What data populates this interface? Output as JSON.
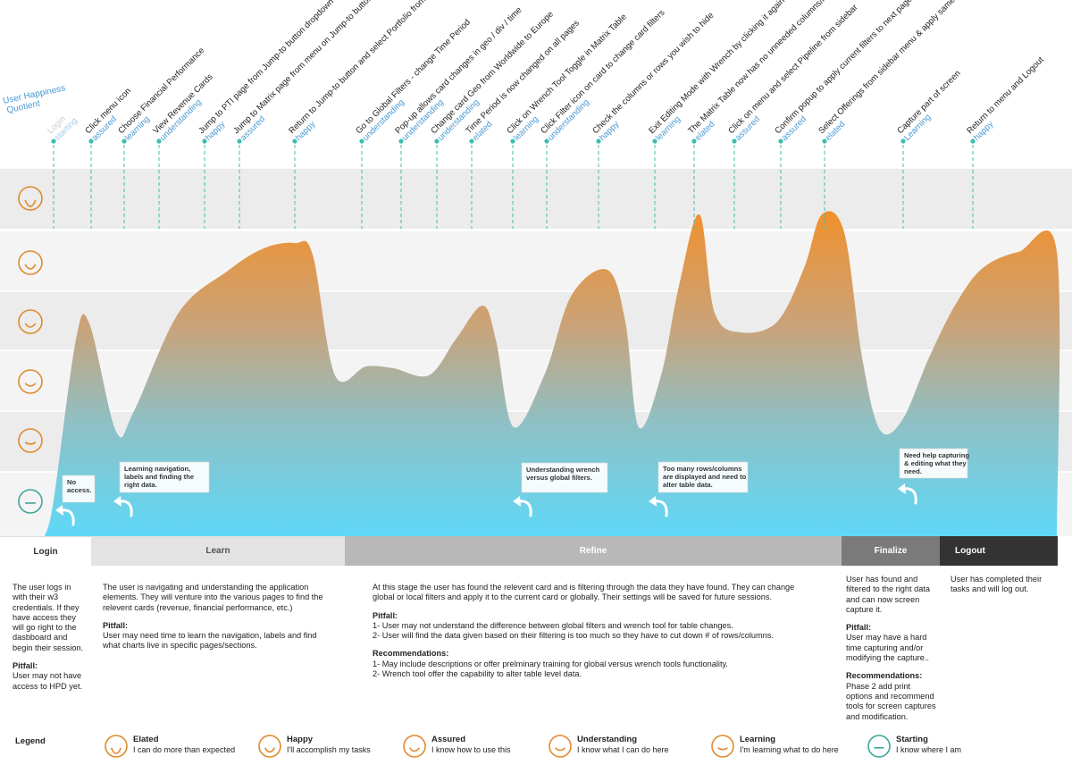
{
  "y_axis_title": "User Happiness\nQuotient",
  "levels": [
    {
      "name": "Elated",
      "desc": "I can do more than expected",
      "color": "#e08a2c"
    },
    {
      "name": "Happy",
      "desc": "I'll accomplish my tasks",
      "color": "#e08a2c"
    },
    {
      "name": "Assured",
      "desc": "I know how to use this",
      "color": "#e08a2c"
    },
    {
      "name": "Understanding",
      "desc": "I know what I can do here",
      "color": "#e08a2c"
    },
    {
      "name": "Learning",
      "desc": "I'm learning what to do here",
      "color": "#e08a2c"
    },
    {
      "name": "Starting",
      "desc": "I know where I am",
      "color": "#3aa69a"
    }
  ],
  "steps": [
    {
      "action": "Login",
      "state": "starting"
    },
    {
      "action": "Click menu icon",
      "state": "assured"
    },
    {
      "action": "Choose Financial Performance",
      "state": "learning"
    },
    {
      "action": "View Revenue Cards",
      "state": "understanding"
    },
    {
      "action": "Jump to PTI page from Jump-to button dropdown",
      "state": "happy"
    },
    {
      "action": "Jump to Matrix page from menu on Jump-to button",
      "state": "assured"
    },
    {
      "action": "Return to Jump-to button and select Portfolio from menu",
      "state": "happy"
    },
    {
      "action": "Go to Global Filters - change Time Period",
      "state": "understanding"
    },
    {
      "action": "Pop-up allows card changes in geo / div / time",
      "state": "understanding"
    },
    {
      "action": "Change card Geo from Worldwide to Europe",
      "state": "understanding"
    },
    {
      "action": "Time Period is now changed on all pages",
      "state": "elated"
    },
    {
      "action": "Click on Wrench Tool Toggle in Matrix Table",
      "state": "learning"
    },
    {
      "action": "Click Filter icon on card to change card filters",
      "state": "understanding"
    },
    {
      "action": "Check the columns or rows you wish to hide",
      "state": "happy"
    },
    {
      "action": "Exit Editing Mode with Wrench by clicking it again",
      "state": "learning"
    },
    {
      "action": "The Matrix Table now has no unneeded columns/rows",
      "state": "elated"
    },
    {
      "action": "Click on menu and select Pipeline from sidebar",
      "state": "assured"
    },
    {
      "action": "Confirm popup to apply current filters to next page",
      "state": "assured"
    },
    {
      "action": "Select Offerings from sidebar menu & apply same filters",
      "state": "elated"
    },
    {
      "action": "Capture part of screen",
      "state": "Learning"
    },
    {
      "action": "Return to menu and Logout",
      "state": "happy"
    }
  ],
  "pitfall_notes": [
    "No\naccess.",
    "Learning navigation,\nlabels and finding the\nright data.",
    "Understanding wrench\nversus global filters.",
    "Too many rows/columns\nare displayed and need to\nalter table data.",
    "Need help capturing\n& editing what they\nneed."
  ],
  "phases": [
    {
      "name": "Login",
      "bg": "#ffffff",
      "fg": "#333333"
    },
    {
      "name": "Learn",
      "bg": "#e3e3e3",
      "fg": "#555555"
    },
    {
      "name": "Refine",
      "bg": "#b8b8b8",
      "fg": "#ffffff"
    },
    {
      "name": "Finalize",
      "bg": "#7a7a7a",
      "fg": "#ffffff"
    },
    {
      "name": "Logout",
      "bg": "#333333",
      "fg": "#ffffff"
    }
  ],
  "phase_text": {
    "login": "The user logs in\nwith their w3\ncredentials.  If they\nhave access they\nwill go right to the\ndasbboard and\nbegin their session.",
    "login_pitfall_label": "Pitfall:",
    "login_pitfall": "User may not have\naccess to HPD yet.",
    "learn": "The user is navigating and understanding the application\nelements.  They will venture into the various pages to find the\nrelevent cards (revenue, financial performance, etc.)",
    "learn_pitfall_label": "Pitfall:",
    "learn_pitfall": "User may need time to learn the navigation, labels and find\nwhat charts live in specific pages/sections.",
    "refine": "At this stage the user has found the relevent card and is filtering through the data they have found.  They can change\nglobal or local filters and apply it to the current card or globally.  Their settings will be saved for future sessions.",
    "refine_pitfall_label": "Pitfall:",
    "refine_pitfall": "1- User may not understand the difference between global filters and wrench tool for table changes.\n2- User will find the data given based on their filtering is too much so they have to cut down # of rows/columns.",
    "refine_rec_label": "Recommendations:",
    "refine_rec": "1- May include descriptions or offer prelminary training for global versus wrench tools functionality.\n2- Wrench tool offer the capability to alter table level data.",
    "finalize": "User has found and\nfiltered to the right data\nand can now screen\ncapture it.",
    "finalize_pitfall_label": "Pitfall:",
    "finalize_pitfall": "User may have a hard\ntime capturing and/or\nmodifying the capture..",
    "finalize_rec_label": "Recommendations:",
    "finalize_rec": "Phase 2 add print\noptions and recommend\ntools for screen captures\nand modification.",
    "logout": "User has completed their\ntasks and will log out."
  },
  "legend_title": "Legend"
}
